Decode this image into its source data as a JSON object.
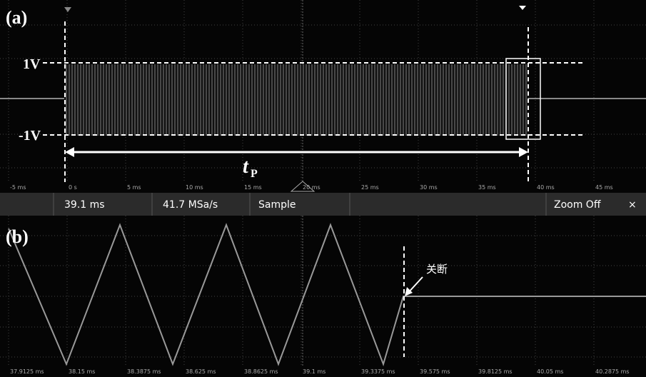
{
  "panel_a": {
    "label": "(a)",
    "upper_level": "1V",
    "lower_level": "-1V",
    "duration_symbol": "t",
    "duration_subscript": "P",
    "time_ticks": [
      "-5 ms",
      "0 s",
      "5 ms",
      "10 ms",
      "15 ms",
      "20 ms",
      "25 ms",
      "30 ms",
      "35 ms",
      "40 ms",
      "45 ms"
    ]
  },
  "status_bar": {
    "position": "39.1 ms",
    "sample_rate": "41.7 MSa/s",
    "mode": "Sample",
    "zoom": "Zoom Off",
    "close": "×"
  },
  "panel_b": {
    "label": "(b)",
    "annotation": "关断",
    "time_ticks": [
      "37.9125 ms",
      "38.15 ms",
      "38.3875 ms",
      "38.625 ms",
      "38.8625 ms",
      "39.1 ms",
      "39.3375 ms",
      "39.575 ms",
      "39.8125 ms",
      "40.05 ms",
      "40.2875 ms"
    ]
  }
}
